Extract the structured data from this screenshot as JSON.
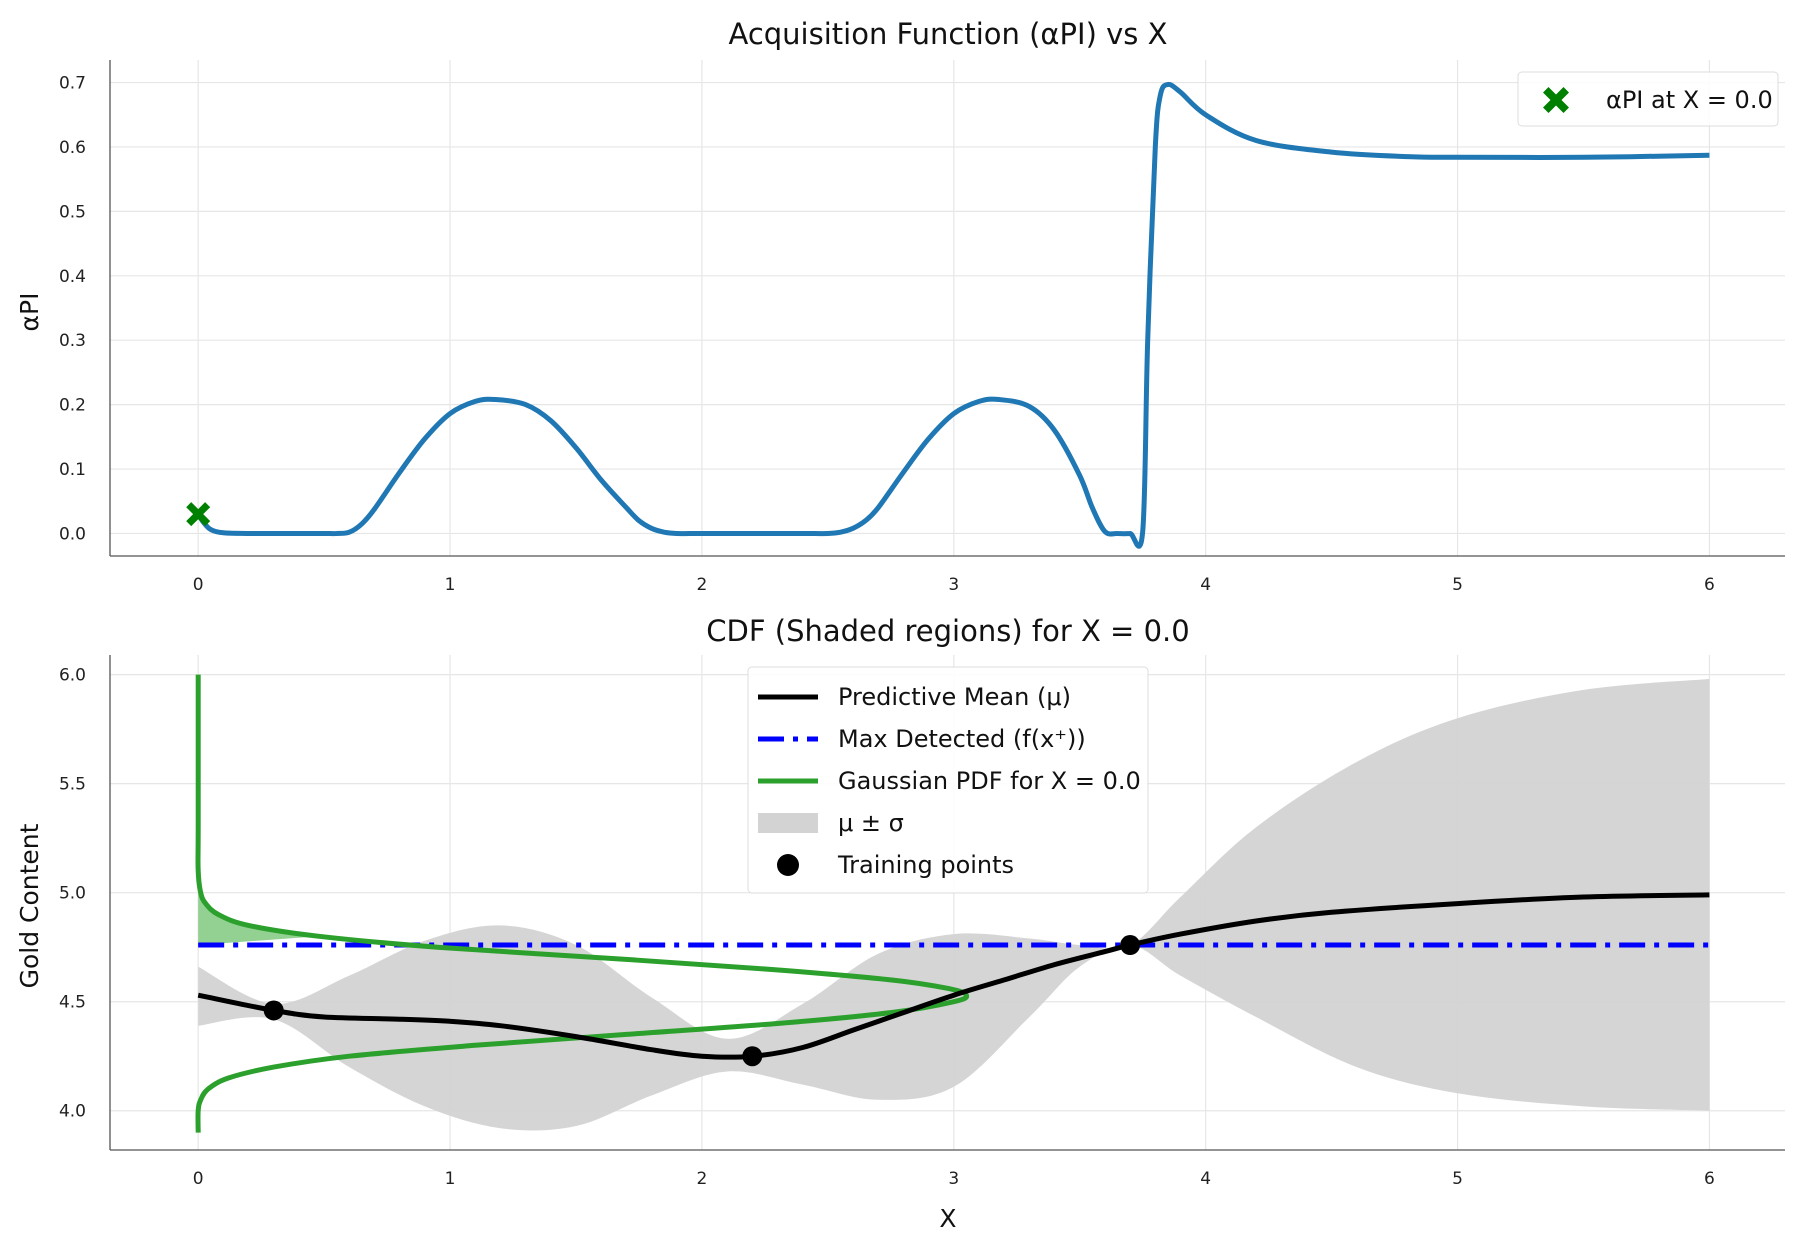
{
  "chart_data": [
    {
      "type": "line",
      "title": "Acquisition Function (αPI) vs X",
      "xlabel": "",
      "ylabel": "αPI",
      "xlim": [
        -0.35,
        6.3
      ],
      "ylim": [
        -0.035,
        0.735
      ],
      "xticks": [
        "0",
        "1",
        "2",
        "3",
        "4",
        "5",
        "6"
      ],
      "yticks": [
        "0.0",
        "0.1",
        "0.2",
        "0.3",
        "0.4",
        "0.5",
        "0.6",
        "0.7"
      ],
      "grid": true,
      "legend": {
        "position": "upper right",
        "entries": [
          "αPI at X = 0.0"
        ]
      },
      "series": [
        {
          "color": "#1f77b4",
          "x": [
            0,
            0.02,
            0.05,
            0.1,
            0.2,
            0.3,
            0.4,
            0.5,
            0.55,
            0.6,
            0.65,
            0.7,
            0.8,
            0.9,
            1.0,
            1.1,
            1.18,
            1.3,
            1.4,
            1.5,
            1.6,
            1.7,
            1.75,
            1.8,
            1.85,
            1.9,
            2.0,
            2.2,
            2.4,
            2.5,
            2.55,
            2.6,
            2.65,
            2.7,
            2.8,
            2.9,
            3.0,
            3.1,
            3.18,
            3.3,
            3.4,
            3.5,
            3.55,
            3.6,
            3.65,
            3.7,
            3.75,
            3.77,
            3.8,
            3.82,
            3.85,
            3.9,
            4.0,
            4.2,
            4.5,
            4.8,
            5.0,
            5.5,
            6.0
          ],
          "y": [
            0.03,
            0.018,
            0.006,
            0.001,
            0.0,
            0.0,
            0.0,
            0.0,
            0.0,
            0.002,
            0.015,
            0.038,
            0.095,
            0.147,
            0.186,
            0.205,
            0.208,
            0.2,
            0.175,
            0.133,
            0.083,
            0.04,
            0.02,
            0.008,
            0.002,
            0.0,
            0.0,
            0.0,
            0.0,
            0.0,
            0.002,
            0.008,
            0.02,
            0.04,
            0.095,
            0.147,
            0.186,
            0.205,
            0.208,
            0.197,
            0.16,
            0.09,
            0.04,
            0.003,
            0.0,
            0.0,
            0.003,
            0.3,
            0.6,
            0.68,
            0.697,
            0.685,
            0.65,
            0.61,
            0.592,
            0.585,
            0.584,
            0.584,
            0.587
          ]
        }
      ],
      "marker": {
        "x": 0.0,
        "y": 0.03,
        "color": "#008000",
        "symbol": "X"
      }
    },
    {
      "type": "line",
      "title": "CDF (Shaded regions) for X = 0.0",
      "xlabel": "X",
      "ylabel": "Gold Content",
      "xlim": [
        -0.35,
        6.3
      ],
      "ylim": [
        3.82,
        6.09
      ],
      "xticks": [
        "0",
        "1",
        "2",
        "3",
        "4",
        "5",
        "6"
      ],
      "yticks": [
        "4.0",
        "4.5",
        "5.0",
        "5.5",
        "6.0"
      ],
      "grid": true,
      "legend": {
        "position": "upper center",
        "entries": [
          "Predictive Mean (μ)",
          "Max Detected (f(x⁺))",
          "Gaussian PDF for X = 0.0",
          "μ ± σ",
          "Training points"
        ]
      },
      "series": [
        {
          "name": "Predictive Mean (μ)",
          "color": "#000000",
          "x": [
            0,
            0.3,
            0.5,
            0.8,
            1.0,
            1.2,
            1.5,
            1.8,
            2.0,
            2.2,
            2.4,
            2.6,
            2.8,
            3.0,
            3.2,
            3.4,
            3.6,
            3.7,
            3.9,
            4.2,
            4.5,
            5.0,
            5.5,
            6.0
          ],
          "y": [
            4.53,
            4.46,
            4.43,
            4.42,
            4.41,
            4.39,
            4.34,
            4.28,
            4.25,
            4.25,
            4.29,
            4.37,
            4.45,
            4.53,
            4.6,
            4.67,
            4.73,
            4.76,
            4.81,
            4.87,
            4.91,
            4.95,
            4.98,
            4.99
          ]
        },
        {
          "name": "Max Detected (f(x⁺))",
          "color": "#0000ff",
          "style": "dashdot",
          "x": [
            0,
            6
          ],
          "y": [
            4.76,
            4.76
          ]
        },
        {
          "name": "Gaussian PDF for X = 0.0",
          "color": "#2ca02c",
          "note": "pdf drawn along y at x = 0 + density",
          "y": [
            3.9,
            4.0,
            4.05,
            4.1,
            4.15,
            4.2,
            4.25,
            4.3,
            4.35,
            4.4,
            4.45,
            4.5,
            4.53,
            4.56,
            4.6,
            4.65,
            4.7,
            4.75,
            4.8,
            4.85,
            4.9,
            4.95,
            5.0,
            5.1,
            5.3,
            6.0
          ],
          "x": [
            0.0,
            0.0,
            0.01,
            0.04,
            0.12,
            0.3,
            0.6,
            1.1,
            1.7,
            2.3,
            2.75,
            3.0,
            3.05,
            2.98,
            2.75,
            2.25,
            1.62,
            0.95,
            0.48,
            0.2,
            0.08,
            0.03,
            0.01,
            0.0,
            0.0,
            0.0
          ]
        },
        {
          "name": "μ ± σ",
          "color": "#d3d3d3",
          "x": [
            0,
            0.3,
            0.6,
            0.9,
            1.2,
            1.5,
            1.8,
            2.1,
            2.4,
            2.7,
            3.0,
            3.3,
            3.5,
            3.7,
            3.9,
            4.2,
            4.6,
            5.0,
            5.5,
            6.0
          ],
          "upper": [
            4.66,
            4.49,
            4.62,
            4.78,
            4.85,
            4.76,
            4.52,
            4.33,
            4.49,
            4.72,
            4.81,
            4.79,
            4.76,
            4.76,
            4.98,
            5.3,
            5.6,
            5.8,
            5.93,
            5.98
          ],
          "lower": [
            4.39,
            4.42,
            4.2,
            4.02,
            3.92,
            3.93,
            4.07,
            4.18,
            4.12,
            4.05,
            4.11,
            4.43,
            4.66,
            4.76,
            4.62,
            4.43,
            4.2,
            4.08,
            4.02,
            4.0
          ]
        }
      ],
      "training_points": {
        "x": [
          0.3,
          2.2,
          3.7
        ],
        "y": [
          4.46,
          4.25,
          4.76
        ]
      },
      "cdf_shading": {
        "color": "#7fc97f",
        "y_from": 4.76,
        "y_to": 5.0
      }
    }
  ]
}
